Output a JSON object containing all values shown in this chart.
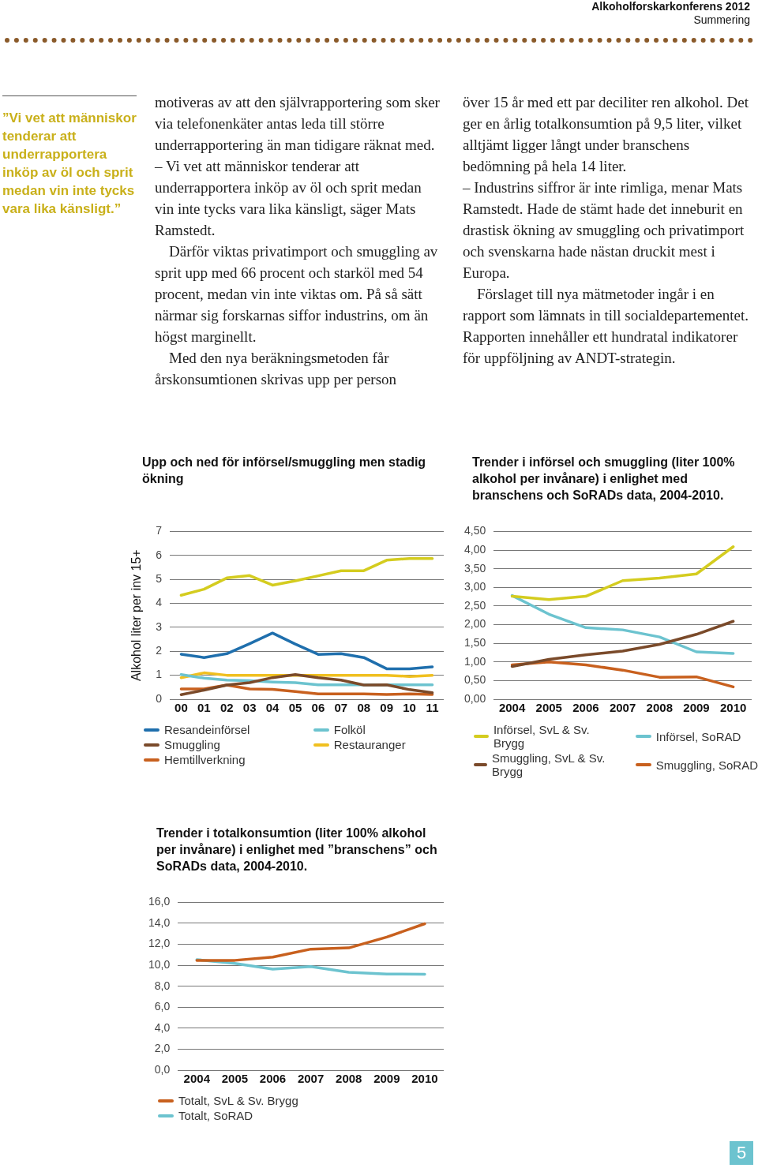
{
  "chart_data": [
    {
      "type": "other",
      "annotations": [
        "Alkoholforskarkonferens 2012",
        "Summering",
        "”Vi vet att människor tenderar att underrapportera inköp av öl och sprit medan vin inte tycks vara lika känsligt.”",
        "motiveras av att den självrapportering som sker via telefonenkäter antas leda till större underrapportering än man tidigare räknat med.\n– Vi vet att människor tenderar att underrapportera inköp av öl och sprit medan vin inte tycks vara lika känsligt, säger Mats Ramstedt.\nDärför viktas privatimport och smuggling av sprit upp med 66 procent och starköl med 54 procent, medan vin inte viktas om. På så sätt närmar sig forskarnas siffor industrins, om än högst marginellt.\nMed den nya beräkningsmetoden får årskonsumtionen skrivas upp per person",
        "över 15 år med ett par deciliter ren alkohol. Det ger en årlig totalkonsumtion på 9,5 liter, vilket alltjämt ligger långt under branschens bedömning på hela 14 liter.\n– Industrins siffror är inte rimliga, menar Mats Ramstedt. Hade de stämt hade det inneburit en drastisk ökning av smuggling och privatimport och svenskarna hade nästan druckit mest i Europa.\nFörslaget till nya mätmetoder ingår i en rapport som lämnats in till socialdepartementet. Rapporten innehåller ett hundratal indikatorer för uppföljning av ANDT-strategin.",
        "5"
      ]
    },
    {
      "type": "line",
      "title": "Upp och ned för införsel/smuggling men stadig ökning",
      "ylabel": "Alkohol liter per inv 15+",
      "categories": [
        "00",
        "01",
        "02",
        "03",
        "04",
        "05",
        "06",
        "07",
        "08",
        "09",
        "10",
        "11"
      ],
      "ylim": [
        0,
        7
      ],
      "yticks": [
        0,
        1,
        2,
        3,
        4,
        5,
        6,
        7
      ],
      "grid": "y",
      "legend": "bottom",
      "marker": "none",
      "series": [
        {
          "color": "#d4cc1f",
          "values": [
            4.34,
            4.59,
            5.06,
            5.16,
            4.76,
            4.94,
            5.15,
            5.36,
            5.36,
            5.8,
            5.87,
            5.87
          ]
        },
        {
          "name": "Resandeinförsel",
          "color": "#1f6fad",
          "values": [
            1.88,
            1.74,
            1.9,
            2.32,
            2.76,
            2.3,
            1.87,
            1.9,
            1.74,
            1.27,
            1.27,
            1.35
          ]
        },
        {
          "name": "Smuggling",
          "color": "#7a4a2a",
          "values": [
            0.19,
            0.38,
            0.59,
            0.69,
            0.9,
            1.03,
            0.9,
            0.8,
            0.59,
            0.6,
            0.4,
            0.27
          ]
        },
        {
          "name": "Hemtillverkning",
          "color": "#c8601e",
          "values": [
            0.43,
            0.43,
            0.59,
            0.43,
            0.41,
            0.32,
            0.22,
            0.22,
            0.22,
            0.2,
            0.22,
            0.2
          ]
        },
        {
          "name": "Folköl",
          "color": "#6cc3cf",
          "values": [
            1.03,
            0.88,
            0.8,
            0.77,
            0.72,
            0.69,
            0.6,
            0.6,
            0.6,
            0.6,
            0.6,
            0.6
          ]
        },
        {
          "name": "Restauranger",
          "color": "#f0c020",
          "values": [
            0.9,
            1.1,
            1.0,
            1.0,
            1.0,
            1.0,
            1.0,
            1.0,
            1.0,
            1.0,
            0.95,
            1.0
          ]
        }
      ]
    },
    {
      "type": "line",
      "title": "Trender i införsel och smuggling (liter 100% alkohol per invånare) i enlighet med branschens och SoRADs data, 2004-2010.",
      "categories": [
        "2004",
        "2005",
        "2006",
        "2007",
        "2008",
        "2009",
        "2010"
      ],
      "ylim": [
        0,
        4.5
      ],
      "yticks": [
        {
          "value": 0,
          "label": "0,00"
        },
        {
          "value": 0.5,
          "label": "0,50"
        },
        {
          "value": 1,
          "label": "1,00"
        },
        {
          "value": 1.5,
          "label": "1,50"
        },
        {
          "value": 2,
          "label": "2,00"
        },
        {
          "value": 2.5,
          "label": "2,50"
        },
        {
          "value": 3,
          "label": "3,00"
        },
        {
          "value": 3.5,
          "label": "3,50"
        },
        {
          "value": 4,
          "label": "4,00"
        },
        {
          "value": 4.5,
          "label": "4,50"
        }
      ],
      "grid": "y",
      "legend": "bottom",
      "marker": "none",
      "series": [
        {
          "name": "Införsel, SvL & Sv. Brygg",
          "color": "#d4cc1f",
          "values": [
            2.76,
            2.67,
            2.76,
            3.18,
            3.25,
            3.36,
            4.09
          ]
        },
        {
          "name": "Smuggling, SvL & Sv. Brygg",
          "color": "#7a4a2a",
          "values": [
            0.88,
            1.07,
            1.19,
            1.29,
            1.47,
            1.74,
            2.09
          ]
        },
        {
          "name": "Införsel, SoRAD",
          "color": "#6cc3cf",
          "values": [
            2.78,
            2.28,
            1.92,
            1.86,
            1.67,
            1.27,
            1.23
          ]
        },
        {
          "name": "Smuggling, SoRAD",
          "color": "#c8601e",
          "values": [
            0.92,
            1.0,
            0.92,
            0.78,
            0.59,
            0.6,
            0.33
          ]
        }
      ]
    },
    {
      "type": "line",
      "title": "Trender i totalkonsumtion (liter 100% alkohol per invånare) i enlighet med ”branschens” och SoRADs data, 2004-2010.",
      "categories": [
        "2004",
        "2005",
        "2006",
        "2007",
        "2008",
        "2009",
        "2010"
      ],
      "ylim": [
        0,
        16
      ],
      "yticks": [
        {
          "value": 0,
          "label": "0,0"
        },
        {
          "value": 2,
          "label": "2,0"
        },
        {
          "value": 4,
          "label": "4,0"
        },
        {
          "value": 6,
          "label": "6,0"
        },
        {
          "value": 8,
          "label": "8,0"
        },
        {
          "value": 10,
          "label": "10,0"
        },
        {
          "value": 12,
          "label": "12,0"
        },
        {
          "value": 14,
          "label": "14,0"
        },
        {
          "value": 16,
          "label": "16,0"
        }
      ],
      "grid": "y",
      "legend": "bottom",
      "marker": "none",
      "series": [
        {
          "name": "Totalt, SvL & Sv. Brygg",
          "color": "#c8601e",
          "values": [
            10.47,
            10.47,
            10.78,
            11.54,
            11.66,
            12.69,
            13.96
          ]
        },
        {
          "name": "Totalt, SoRAD",
          "color": "#6cc3cf",
          "values": [
            10.54,
            10.18,
            9.63,
            9.87,
            9.34,
            9.17,
            9.15
          ]
        }
      ]
    }
  ]
}
